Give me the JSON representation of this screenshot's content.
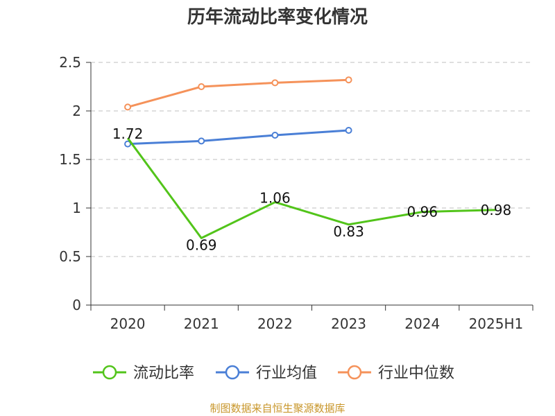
{
  "chart_data": {
    "type": "line",
    "title": "历年流动比率变化情况",
    "xlabel": "",
    "ylabel": "",
    "categories": [
      "2020",
      "2021",
      "2022",
      "2023",
      "2024",
      "2025H1"
    ],
    "ylim": [
      0,
      2.5
    ],
    "yticks": [
      "0",
      "0.5",
      "1",
      "1.5",
      "2",
      "2.5"
    ],
    "grid": true,
    "legend_position": "bottom",
    "series": [
      {
        "name": "流动比率",
        "color": "#52c41a",
        "values": [
          1.72,
          0.69,
          1.06,
          0.83,
          0.96,
          0.98
        ],
        "labels": [
          "1.72",
          "0.69",
          "1.06",
          "0.83",
          "0.96",
          "0.98"
        ],
        "show_markers": false
      },
      {
        "name": "行业均值",
        "color": "#4a7fd6",
        "values": [
          1.66,
          1.69,
          1.75,
          1.8,
          null,
          null
        ],
        "show_markers": true
      },
      {
        "name": "行业中位数",
        "color": "#f5925a",
        "values": [
          2.04,
          2.25,
          2.29,
          2.32,
          null,
          null
        ],
        "show_markers": true
      }
    ]
  },
  "source_note": "制图数据来自恒生聚源数据库"
}
